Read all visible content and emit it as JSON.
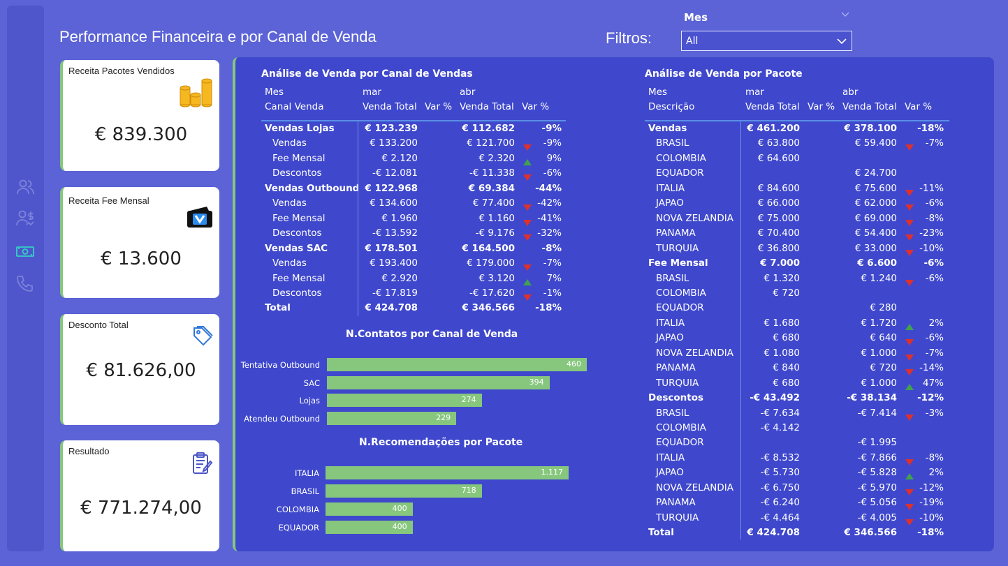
{
  "title": "Performance Financeira e por Canal de Venda",
  "filter": {
    "label": "Filtros:",
    "field": "Mes",
    "value": "All"
  },
  "cards": [
    {
      "label": "Receita Pacotes Vendidos",
      "value": "€ 839.300",
      "icon": "coins-icon"
    },
    {
      "label": "Receita Fee Mensal",
      "value": "€ 13.600",
      "icon": "wallet-icon"
    },
    {
      "label": "Desconto Total",
      "value": "€ 81.626,00",
      "icon": "tag-icon"
    },
    {
      "label": "Resultado",
      "value": "€ 771.274,00",
      "icon": "clipboard-icon"
    }
  ],
  "sidebar": [
    "users-icon",
    "user-money-icon",
    "banknote-icon",
    "phone-icon"
  ],
  "canal": {
    "title": "Análise de Venda por Canal de Vendas",
    "hdr1": [
      "Mes",
      "mar",
      "abr"
    ],
    "hdr2": [
      "Canal Venda",
      "Venda Total",
      "Var %",
      "Venda Total",
      "Var %"
    ],
    "rows": [
      {
        "name": "Vendas Lojas",
        "bold": true,
        "mar": "€ 123.239",
        "abr": "€ 112.682",
        "ind": "",
        "var": "-9%"
      },
      {
        "name": "Vendas",
        "bold": false,
        "mar": "€ 133.200",
        "abr": "€ 121.700",
        "ind": "dn",
        "var": "-9%"
      },
      {
        "name": "Fee Mensal",
        "bold": false,
        "mar": "€ 2.120",
        "abr": "€ 2.320",
        "ind": "up",
        "var": "9%"
      },
      {
        "name": "Descontos",
        "bold": false,
        "mar": "-€ 12.081",
        "abr": "-€ 11.338",
        "ind": "dn",
        "var": "-6%"
      },
      {
        "name": "Vendas Outbound",
        "bold": true,
        "mar": "€ 122.968",
        "abr": "€ 69.384",
        "ind": "",
        "var": "-44%"
      },
      {
        "name": "Vendas",
        "bold": false,
        "mar": "€ 134.600",
        "abr": "€ 77.400",
        "ind": "dn",
        "var": "-42%"
      },
      {
        "name": "Fee Mensal",
        "bold": false,
        "mar": "€ 1.960",
        "abr": "€ 1.160",
        "ind": "dn",
        "var": "-41%"
      },
      {
        "name": "Descontos",
        "bold": false,
        "mar": "-€ 13.592",
        "abr": "-€ 9.176",
        "ind": "dn",
        "var": "-32%"
      },
      {
        "name": "Vendas SAC",
        "bold": true,
        "mar": "€ 178.501",
        "abr": "€ 164.500",
        "ind": "",
        "var": "-8%"
      },
      {
        "name": "Vendas",
        "bold": false,
        "mar": "€ 193.400",
        "abr": "€ 179.000",
        "ind": "dn",
        "var": "-7%"
      },
      {
        "name": "Fee Mensal",
        "bold": false,
        "mar": "€ 2.920",
        "abr": "€ 3.120",
        "ind": "up",
        "var": "7%"
      },
      {
        "name": "Descontos",
        "bold": false,
        "mar": "-€ 17.819",
        "abr": "-€ 17.620",
        "ind": "dn",
        "var": "-1%"
      },
      {
        "name": "Total",
        "bold": true,
        "mar": "€ 424.708",
        "abr": "€ 346.566",
        "ind": "",
        "var": "-18%"
      }
    ]
  },
  "pacote": {
    "title": "Análise de Venda por Pacote",
    "hdr1": [
      "Mes",
      "mar",
      "abr"
    ],
    "hdr2": [
      "Descrição",
      "Venda Total",
      "Var %",
      "Venda Total",
      "Var %"
    ],
    "rows": [
      {
        "name": "Vendas",
        "bold": true,
        "mar": "€ 461.200",
        "abr": "€ 378.100",
        "ind": "",
        "var": "-18%"
      },
      {
        "name": "BRASIL",
        "bold": false,
        "mar": "€ 63.800",
        "abr": "€ 59.400",
        "ind": "dn",
        "var": "-7%"
      },
      {
        "name": "COLOMBIA",
        "bold": false,
        "mar": "€ 64.600",
        "abr": "",
        "ind": "",
        "var": ""
      },
      {
        "name": "EQUADOR",
        "bold": false,
        "mar": "",
        "abr": "€ 24.700",
        "ind": "",
        "var": ""
      },
      {
        "name": "ITALIA",
        "bold": false,
        "mar": "€ 84.600",
        "abr": "€ 75.600",
        "ind": "dn",
        "var": "-11%"
      },
      {
        "name": "JAPAO",
        "bold": false,
        "mar": "€ 66.000",
        "abr": "€ 62.000",
        "ind": "dn",
        "var": "-6%"
      },
      {
        "name": "NOVA ZELANDIA",
        "bold": false,
        "mar": "€ 75.000",
        "abr": "€ 69.000",
        "ind": "dn",
        "var": "-8%"
      },
      {
        "name": "PANAMA",
        "bold": false,
        "mar": "€ 70.400",
        "abr": "€ 54.400",
        "ind": "dn",
        "var": "-23%"
      },
      {
        "name": "TURQUIA",
        "bold": false,
        "mar": "€ 36.800",
        "abr": "€ 33.000",
        "ind": "dn",
        "var": "-10%"
      },
      {
        "name": "Fee Mensal",
        "bold": true,
        "mar": "€ 7.000",
        "abr": "€ 6.600",
        "ind": "",
        "var": "-6%"
      },
      {
        "name": "BRASIL",
        "bold": false,
        "mar": "€ 1.320",
        "abr": "€ 1.240",
        "ind": "dn",
        "var": "-6%"
      },
      {
        "name": "COLOMBIA",
        "bold": false,
        "mar": "€ 720",
        "abr": "",
        "ind": "",
        "var": ""
      },
      {
        "name": "EQUADOR",
        "bold": false,
        "mar": "",
        "abr": "€ 280",
        "ind": "",
        "var": ""
      },
      {
        "name": "ITALIA",
        "bold": false,
        "mar": "€ 1.680",
        "abr": "€ 1.720",
        "ind": "up",
        "var": "2%"
      },
      {
        "name": "JAPAO",
        "bold": false,
        "mar": "€ 680",
        "abr": "€ 640",
        "ind": "dn",
        "var": "-6%"
      },
      {
        "name": "NOVA ZELANDIA",
        "bold": false,
        "mar": "€ 1.080",
        "abr": "€ 1.000",
        "ind": "dn",
        "var": "-7%"
      },
      {
        "name": "PANAMA",
        "bold": false,
        "mar": "€ 840",
        "abr": "€ 720",
        "ind": "dn",
        "var": "-14%"
      },
      {
        "name": "TURQUIA",
        "bold": false,
        "mar": "€ 680",
        "abr": "€ 1.000",
        "ind": "up",
        "var": "47%"
      },
      {
        "name": "Descontos",
        "bold": true,
        "mar": "-€ 43.492",
        "abr": "-€ 38.134",
        "ind": "",
        "var": "-12%"
      },
      {
        "name": "BRASIL",
        "bold": false,
        "mar": "-€ 7.634",
        "abr": "-€ 7.414",
        "ind": "dn",
        "var": "-3%"
      },
      {
        "name": "COLOMBIA",
        "bold": false,
        "mar": "-€ 4.142",
        "abr": "",
        "ind": "",
        "var": ""
      },
      {
        "name": "EQUADOR",
        "bold": false,
        "mar": "",
        "abr": "-€ 1.995",
        "ind": "",
        "var": ""
      },
      {
        "name": "ITALIA",
        "bold": false,
        "mar": "-€ 8.532",
        "abr": "-€ 7.866",
        "ind": "dn",
        "var": "-8%"
      },
      {
        "name": "JAPAO",
        "bold": false,
        "mar": "-€ 5.730",
        "abr": "-€ 5.828",
        "ind": "up",
        "var": "2%"
      },
      {
        "name": "NOVA ZELANDIA",
        "bold": false,
        "mar": "-€ 6.750",
        "abr": "-€ 5.970",
        "ind": "dn",
        "var": "-12%"
      },
      {
        "name": "PANAMA",
        "bold": false,
        "mar": "-€ 6.240",
        "abr": "-€ 5.056",
        "ind": "dn",
        "var": "-19%"
      },
      {
        "name": "TURQUIA",
        "bold": false,
        "mar": "-€ 4.464",
        "abr": "-€ 4.005",
        "ind": "dn",
        "var": "-10%"
      },
      {
        "name": "Total",
        "bold": true,
        "mar": "€ 424.708",
        "abr": "€ 346.566",
        "ind": "",
        "var": "-18%"
      }
    ]
  },
  "colors": {
    "bg": "#5b63d6",
    "panel": "#3f48cc",
    "accent": "#86c77d",
    "up": "#3fa34d",
    "down": "#e0302a"
  },
  "chart_data": [
    {
      "type": "bar",
      "title": "N.Contatos por Canal de Venda",
      "orientation": "horizontal",
      "categories": [
        "Tentativa Outbound",
        "SAC",
        "Lojas",
        "Atendeu Outbound"
      ],
      "values": [
        460,
        394,
        274,
        229
      ],
      "labels": [
        "460",
        "394",
        "274",
        "229"
      ]
    },
    {
      "type": "bar",
      "title": "N.Recomendações por Pacote",
      "orientation": "horizontal",
      "categories": [
        "ITALIA",
        "BRASIL",
        "COLOMBIA",
        "EQUADOR"
      ],
      "values": [
        1117,
        718,
        400,
        400
      ],
      "labels": [
        "1.117",
        "718",
        "400",
        "400"
      ]
    }
  ]
}
